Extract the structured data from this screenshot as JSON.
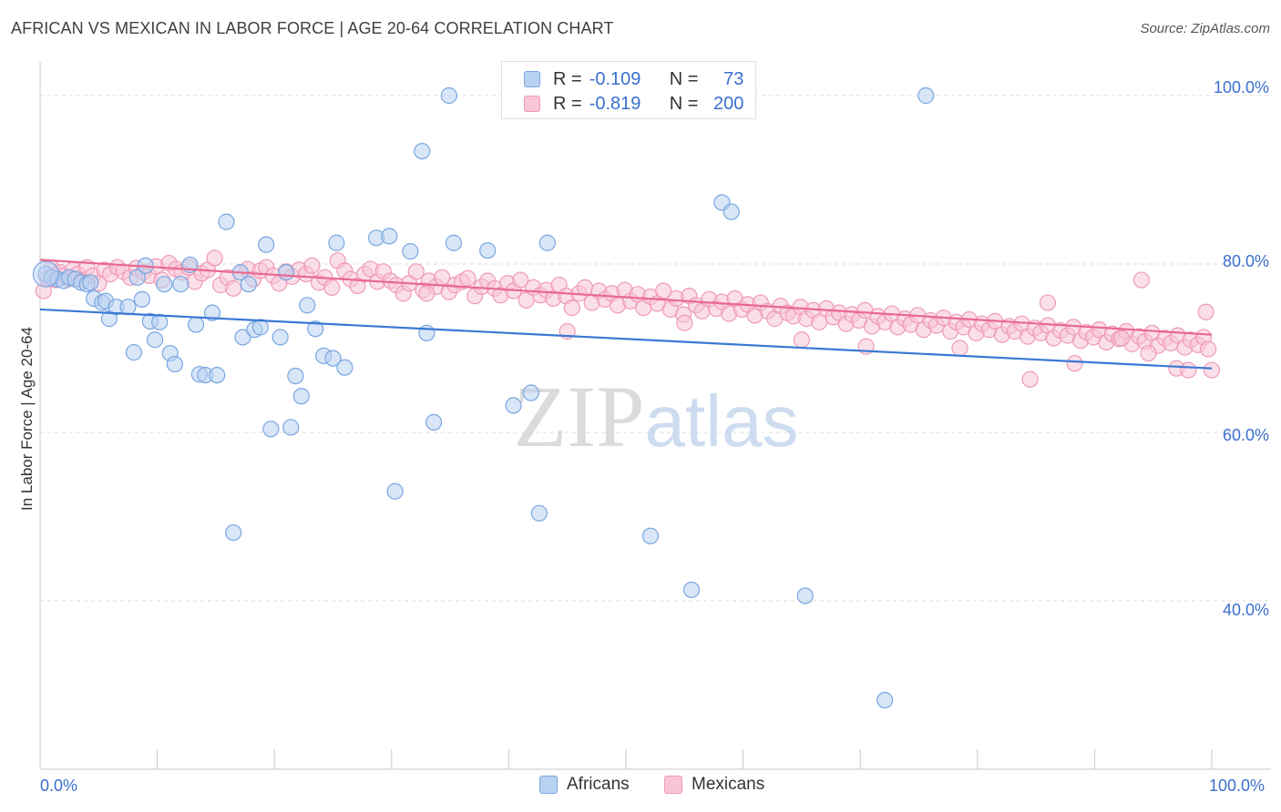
{
  "title": "AFRICAN VS MEXICAN IN LABOR FORCE | AGE 20-64 CORRELATION CHART",
  "source": "Source: ZipAtlas.com",
  "watermark": "ZIPatlas",
  "legend": {
    "row1": {
      "r_label": "R =",
      "r_value": "-0.109",
      "n_label": "N =",
      "n_value": "73"
    },
    "row2": {
      "r_label": "R =",
      "r_value": "-0.819",
      "n_label": "N =",
      "n_value": "200"
    }
  },
  "bottom_legend": {
    "africans": "Africans",
    "mexicans": "Mexicans"
  },
  "colors": {
    "africans_fill": "#b8d2f3",
    "africans_stroke": "#7aa6e0",
    "africans_line": "#3a78d4",
    "mexicans_fill": "#f8c5d5",
    "mexicans_stroke": "#ef9ab8",
    "mexicans_line": "#e8698f",
    "tick_text": "#3a6fd0",
    "grid": "#dddddd"
  },
  "chart_data": {
    "type": "scatter",
    "title": "AFRICAN VS MEXICAN IN LABOR FORCE | AGE 20-64 CORRELATION CHART",
    "xlabel": "",
    "ylabel": "In Labor Force | Age 20-64",
    "xlim": [
      0,
      100
    ],
    "ylim": [
      20,
      104
    ],
    "x_tick_labels": [
      "0.0%",
      "100.0%"
    ],
    "y_ticks": [
      40,
      60,
      80,
      100
    ],
    "y_tick_labels": [
      "40.0%",
      "60.0%",
      "80.0%",
      "100.0%"
    ],
    "grid": true,
    "legend_position": "top-center",
    "series": [
      {
        "name": "Africans",
        "r": -0.109,
        "n": 73,
        "trend": {
          "x": [
            0,
            100
          ],
          "y": [
            74.6,
            67.6
          ]
        },
        "points": [
          [
            0.5,
            78.8
          ],
          [
            1.0,
            78.4
          ],
          [
            1.5,
            78.2
          ],
          [
            2.0,
            78.0
          ],
          [
            2.5,
            78.4
          ],
          [
            3.0,
            78.2
          ],
          [
            3.5,
            77.8
          ],
          [
            4.0,
            77.6
          ],
          [
            4.3,
            77.8
          ],
          [
            4.6,
            75.9
          ],
          [
            5.3,
            75.4
          ],
          [
            5.6,
            75.6
          ],
          [
            5.9,
            73.5
          ],
          [
            6.5,
            74.9
          ],
          [
            7.5,
            74.9
          ],
          [
            8.0,
            69.5
          ],
          [
            8.3,
            78.4
          ],
          [
            8.7,
            75.8
          ],
          [
            9.0,
            79.8
          ],
          [
            9.4,
            73.2
          ],
          [
            9.8,
            71.0
          ],
          [
            10.2,
            73.1
          ],
          [
            10.6,
            77.6
          ],
          [
            11.1,
            69.4
          ],
          [
            11.5,
            68.1
          ],
          [
            12.0,
            77.6
          ],
          [
            12.8,
            79.9
          ],
          [
            13.3,
            72.8
          ],
          [
            13.6,
            66.9
          ],
          [
            14.1,
            66.8
          ],
          [
            14.7,
            74.2
          ],
          [
            15.1,
            66.8
          ],
          [
            15.9,
            85.0
          ],
          [
            16.5,
            48.1
          ],
          [
            17.1,
            79.0
          ],
          [
            17.3,
            71.3
          ],
          [
            17.8,
            77.6
          ],
          [
            18.3,
            72.2
          ],
          [
            18.8,
            72.5
          ],
          [
            19.3,
            82.3
          ],
          [
            19.7,
            60.4
          ],
          [
            20.5,
            71.3
          ],
          [
            21.0,
            79.0
          ],
          [
            21.4,
            60.6
          ],
          [
            21.8,
            66.7
          ],
          [
            22.3,
            64.3
          ],
          [
            22.8,
            75.1
          ],
          [
            23.5,
            72.3
          ],
          [
            24.2,
            69.1
          ],
          [
            25.0,
            68.8
          ],
          [
            25.3,
            82.5
          ],
          [
            26.0,
            67.7
          ],
          [
            28.7,
            83.1
          ],
          [
            29.8,
            83.3
          ],
          [
            30.3,
            53.0
          ],
          [
            31.6,
            81.5
          ],
          [
            32.6,
            93.4
          ],
          [
            33.0,
            71.8
          ],
          [
            33.6,
            61.2
          ],
          [
            34.9,
            100.0
          ],
          [
            35.3,
            82.5
          ],
          [
            38.2,
            81.6
          ],
          [
            40.4,
            63.2
          ],
          [
            41.9,
            64.7
          ],
          [
            42.6,
            50.4
          ],
          [
            43.3,
            82.5
          ],
          [
            52.1,
            47.7
          ],
          [
            55.6,
            41.3
          ],
          [
            58.2,
            87.3
          ],
          [
            59.0,
            86.2
          ],
          [
            65.3,
            40.6
          ],
          [
            72.1,
            28.2
          ],
          [
            75.6,
            100.0
          ]
        ]
      },
      {
        "name": "Mexicans",
        "r": -0.819,
        "n": 200,
        "trend": {
          "x": [
            0,
            100
          ],
          "y": [
            80.5,
            71.6
          ]
        },
        "points": [
          [
            0.3,
            76.8
          ],
          [
            0.6,
            78.3
          ],
          [
            1.0,
            79.5
          ],
          [
            1.3,
            78.1
          ],
          [
            1.7,
            79.0
          ],
          [
            2.0,
            78.6
          ],
          [
            2.4,
            78.2
          ],
          [
            2.8,
            79.3
          ],
          [
            3.2,
            78.8
          ],
          [
            3.6,
            78.1
          ],
          [
            4.0,
            79.6
          ],
          [
            4.5,
            78.6
          ],
          [
            5.0,
            77.7
          ],
          [
            5.5,
            79.3
          ],
          [
            6.0,
            78.8
          ],
          [
            6.6,
            79.6
          ],
          [
            7.1,
            79.1
          ],
          [
            7.7,
            78.4
          ],
          [
            8.2,
            79.5
          ],
          [
            8.8,
            79.0
          ],
          [
            9.3,
            78.6
          ],
          [
            9.9,
            79.7
          ],
          [
            10.4,
            78.1
          ],
          [
            11.0,
            80.1
          ],
          [
            11.6,
            79.4
          ],
          [
            12.1,
            79.0
          ],
          [
            12.7,
            79.6
          ],
          [
            13.2,
            77.9
          ],
          [
            13.8,
            78.9
          ],
          [
            14.3,
            79.3
          ],
          [
            14.9,
            80.7
          ],
          [
            15.4,
            77.5
          ],
          [
            16.0,
            78.4
          ],
          [
            16.5,
            77.1
          ],
          [
            17.1,
            79.0
          ],
          [
            17.7,
            79.4
          ],
          [
            18.2,
            78.2
          ],
          [
            18.8,
            79.2
          ],
          [
            19.3,
            79.6
          ],
          [
            19.9,
            78.6
          ],
          [
            20.4,
            77.7
          ],
          [
            21.0,
            79.1
          ],
          [
            21.5,
            78.5
          ],
          [
            22.1,
            79.3
          ],
          [
            22.7,
            78.8
          ],
          [
            23.2,
            79.8
          ],
          [
            23.8,
            77.8
          ],
          [
            24.3,
            78.4
          ],
          [
            24.9,
            77.2
          ],
          [
            25.4,
            80.4
          ],
          [
            26.0,
            79.2
          ],
          [
            26.5,
            78.2
          ],
          [
            27.1,
            77.4
          ],
          [
            27.7,
            78.8
          ],
          [
            28.2,
            79.4
          ],
          [
            28.8,
            77.9
          ],
          [
            29.3,
            79.1
          ],
          [
            29.9,
            78.0
          ],
          [
            30.4,
            77.5
          ],
          [
            31.0,
            76.5
          ],
          [
            31.5,
            77.7
          ],
          [
            32.1,
            79.1
          ],
          [
            32.7,
            76.9
          ],
          [
            33.2,
            78.0
          ],
          [
            33.8,
            77.3
          ],
          [
            34.3,
            78.4
          ],
          [
            34.9,
            76.7
          ],
          [
            35.4,
            77.5
          ],
          [
            36.0,
            77.9
          ],
          [
            36.5,
            78.3
          ],
          [
            37.1,
            76.2
          ],
          [
            37.7,
            77.3
          ],
          [
            38.2,
            78.0
          ],
          [
            38.8,
            77.1
          ],
          [
            39.3,
            76.3
          ],
          [
            39.9,
            77.7
          ],
          [
            40.4,
            76.8
          ],
          [
            41.0,
            78.1
          ],
          [
            41.5,
            75.7
          ],
          [
            42.1,
            77.2
          ],
          [
            42.7,
            76.3
          ],
          [
            43.2,
            76.9
          ],
          [
            43.8,
            75.9
          ],
          [
            44.3,
            77.5
          ],
          [
            44.9,
            76.2
          ],
          [
            45.4,
            74.8
          ],
          [
            46.0,
            76.5
          ],
          [
            46.5,
            77.2
          ],
          [
            47.1,
            75.4
          ],
          [
            47.7,
            76.8
          ],
          [
            48.2,
            75.8
          ],
          [
            48.8,
            76.5
          ],
          [
            49.3,
            75.1
          ],
          [
            49.9,
            76.9
          ],
          [
            50.4,
            75.6
          ],
          [
            51.0,
            76.4
          ],
          [
            51.5,
            74.8
          ],
          [
            52.1,
            76.1
          ],
          [
            52.7,
            75.3
          ],
          [
            53.2,
            76.8
          ],
          [
            53.8,
            74.6
          ],
          [
            54.3,
            75.9
          ],
          [
            54.9,
            74.0
          ],
          [
            55.4,
            76.2
          ],
          [
            56.0,
            75.1
          ],
          [
            56.5,
            74.4
          ],
          [
            57.1,
            75.8
          ],
          [
            57.7,
            74.7
          ],
          [
            58.2,
            75.5
          ],
          [
            58.8,
            74.1
          ],
          [
            59.3,
            75.9
          ],
          [
            59.9,
            74.6
          ],
          [
            60.4,
            75.2
          ],
          [
            61.0,
            73.9
          ],
          [
            61.5,
            75.4
          ],
          [
            62.1,
            74.4
          ],
          [
            62.7,
            73.5
          ],
          [
            63.2,
            75.0
          ],
          [
            63.8,
            74.2
          ],
          [
            64.3,
            73.8
          ],
          [
            64.9,
            74.9
          ],
          [
            65.4,
            73.5
          ],
          [
            66.0,
            74.5
          ],
          [
            66.5,
            73.1
          ],
          [
            67.1,
            74.7
          ],
          [
            67.7,
            73.7
          ],
          [
            68.2,
            74.2
          ],
          [
            68.8,
            72.9
          ],
          [
            69.3,
            74.0
          ],
          [
            69.9,
            73.3
          ],
          [
            70.4,
            74.5
          ],
          [
            71.0,
            72.6
          ],
          [
            71.5,
            73.8
          ],
          [
            72.1,
            73.1
          ],
          [
            72.7,
            74.1
          ],
          [
            73.2,
            72.5
          ],
          [
            73.8,
            73.5
          ],
          [
            74.3,
            72.8
          ],
          [
            74.9,
            73.9
          ],
          [
            75.4,
            72.2
          ],
          [
            76.0,
            73.3
          ],
          [
            76.5,
            72.7
          ],
          [
            77.1,
            73.6
          ],
          [
            77.7,
            72.0
          ],
          [
            78.2,
            73.1
          ],
          [
            78.8,
            72.5
          ],
          [
            79.3,
            73.4
          ],
          [
            79.9,
            71.8
          ],
          [
            80.4,
            72.9
          ],
          [
            81.0,
            72.2
          ],
          [
            81.5,
            73.2
          ],
          [
            82.1,
            71.6
          ],
          [
            82.7,
            72.6
          ],
          [
            83.2,
            72.0
          ],
          [
            83.8,
            72.9
          ],
          [
            84.3,
            71.4
          ],
          [
            84.9,
            72.4
          ],
          [
            85.4,
            71.8
          ],
          [
            86.0,
            72.7
          ],
          [
            86.5,
            71.2
          ],
          [
            87.1,
            72.1
          ],
          [
            87.7,
            71.5
          ],
          [
            88.2,
            72.5
          ],
          [
            88.8,
            70.9
          ],
          [
            89.3,
            71.9
          ],
          [
            89.9,
            71.3
          ],
          [
            90.4,
            72.2
          ],
          [
            91.0,
            70.7
          ],
          [
            91.5,
            71.7
          ],
          [
            92.1,
            71.1
          ],
          [
            92.7,
            72.0
          ],
          [
            93.2,
            70.5
          ],
          [
            93.8,
            71.4
          ],
          [
            94.3,
            70.8
          ],
          [
            94.9,
            71.8
          ],
          [
            95.4,
            70.3
          ],
          [
            96.0,
            71.2
          ],
          [
            96.5,
            70.6
          ],
          [
            97.1,
            71.5
          ],
          [
            97.7,
            70.1
          ],
          [
            98.2,
            71.0
          ],
          [
            98.8,
            70.4
          ],
          [
            99.3,
            71.3
          ],
          [
            99.7,
            69.9
          ],
          [
            33.0,
            76.5
          ],
          [
            45.0,
            72.0
          ],
          [
            55.0,
            73.0
          ],
          [
            65.0,
            71.0
          ],
          [
            70.5,
            70.2
          ],
          [
            78.5,
            70.0
          ],
          [
            84.5,
            66.3
          ],
          [
            88.3,
            68.2
          ],
          [
            92.3,
            71.2
          ],
          [
            94.6,
            69.4
          ],
          [
            97.0,
            67.6
          ],
          [
            98.0,
            67.4
          ],
          [
            99.5,
            74.3
          ],
          [
            100.0,
            67.4
          ],
          [
            94.0,
            78.1
          ],
          [
            86.0,
            75.4
          ]
        ]
      }
    ]
  }
}
